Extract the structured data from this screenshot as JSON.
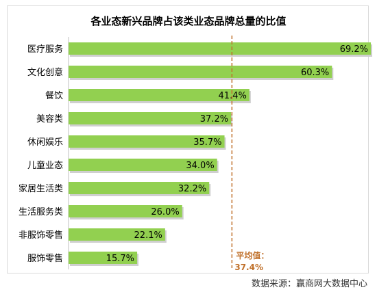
{
  "chart_data": {
    "type": "bar",
    "orientation": "horizontal",
    "title": "各业态新兴品牌占该类业态品牌总量的比值",
    "categories": [
      "医疗服务",
      "文化创意",
      "餐饮",
      "美容类",
      "休闲娱乐",
      "儿童业态",
      "家居生活类",
      "生活服务类",
      "非服饰零售",
      "服饰零售"
    ],
    "values": [
      69.2,
      60.3,
      41.4,
      37.2,
      35.7,
      34.0,
      32.2,
      26.0,
      22.1,
      15.7
    ],
    "value_labels": [
      "69.2%",
      "60.3%",
      "41.4%",
      "37.2%",
      "35.7%",
      "34.0%",
      "32.2%",
      "26.0%",
      "22.1%",
      "15.7%"
    ],
    "xlim": [
      0,
      75
    ],
    "grid": false,
    "bar_color": "#92d050",
    "average": {
      "value": 37.4,
      "label_line1": "平均值：",
      "label_line2": "37.4%",
      "color": "#c0702a"
    }
  },
  "source": "数据来源：赢商网大数据中心"
}
